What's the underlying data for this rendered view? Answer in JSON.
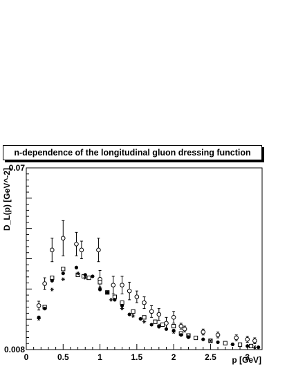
{
  "chart_data": {
    "type": "scatter",
    "title": "n-dependence of the longitudinal gluon dressing function",
    "xlabel": "p [GeV]",
    "ylabel": "D_L(p) [GeV^-2]",
    "xlim": [
      0,
      3.2
    ],
    "ylim": [
      0.008,
      0.07
    ],
    "xticks": [
      "0",
      "0.5",
      "1",
      "1.5",
      "2",
      "2.5",
      "3"
    ],
    "yticks": [
      "0.008",
      "0.07"
    ],
    "grid": false,
    "series": [
      {
        "marker": "open-circle",
        "x": [
          0.17,
          0.25,
          0.35,
          0.5,
          0.68,
          0.75,
          0.98,
          1.0,
          1.18,
          1.3,
          1.4,
          1.5,
          1.6,
          1.7,
          1.8,
          1.9,
          2.0,
          2.1,
          2.15,
          2.4,
          2.6,
          2.85,
          3.0,
          3.1
        ],
        "y": [
          0.023,
          0.0305,
          0.042,
          0.046,
          0.044,
          0.042,
          0.042,
          0.032,
          0.03,
          0.03,
          0.028,
          0.026,
          0.024,
          0.021,
          0.02,
          0.017,
          0.019,
          0.016,
          0.015,
          0.014,
          0.013,
          0.012,
          0.0115,
          0.011
        ],
        "yerr": [
          0.0015,
          0.002,
          0.004,
          0.006,
          0.004,
          0.003,
          0.004,
          0.003,
          0.003,
          0.003,
          0.003,
          0.002,
          0.002,
          0.002,
          0.002,
          0.002,
          0.002,
          0.001,
          0.001,
          0.001,
          0.001,
          0.001,
          0.001,
          0.001
        ]
      },
      {
        "marker": "open-square",
        "x": [
          0.25,
          0.35,
          0.5,
          0.7,
          0.78,
          0.85,
          1.0,
          1.1,
          1.2,
          1.3,
          1.45,
          1.6,
          1.75,
          1.85,
          2.0,
          2.1,
          2.2,
          2.3,
          2.5,
          2.7,
          2.9,
          3.05
        ],
        "y": [
          0.0225,
          0.0325,
          0.0355,
          0.0335,
          0.033,
          0.0325,
          0.031,
          0.0275,
          0.026,
          0.024,
          0.021,
          0.019,
          0.0175,
          0.0165,
          0.016,
          0.0135,
          0.0128,
          0.012,
          0.011,
          0.0102,
          0.0097,
          0.0092
        ]
      },
      {
        "marker": "filled-circle",
        "x": [
          0.17,
          0.25,
          0.35,
          0.5,
          0.68,
          0.8,
          0.9,
          1.0,
          1.1,
          1.2,
          1.3,
          1.4,
          1.55,
          1.7,
          1.8,
          1.9,
          2.0,
          2.1,
          2.2,
          2.4,
          2.6,
          2.8,
          3.0,
          3.15
        ],
        "y": [
          0.019,
          0.022,
          0.0315,
          0.034,
          0.036,
          0.0335,
          0.033,
          0.0285,
          0.0275,
          0.025,
          0.023,
          0.02,
          0.0185,
          0.0165,
          0.0158,
          0.015,
          0.0145,
          0.013,
          0.0122,
          0.0115,
          0.0105,
          0.0098,
          0.0092,
          0.0088
        ]
      },
      {
        "marker": "star",
        "x": [
          0.17,
          0.35,
          0.5,
          0.7,
          0.8,
          1.0,
          1.15,
          1.3,
          1.45,
          1.6,
          1.8,
          2.0,
          2.2,
          2.5,
          2.8,
          3.1
        ],
        "y": [
          0.0185,
          0.0285,
          0.032,
          0.034,
          0.0325,
          0.029,
          0.025,
          0.022,
          0.0195,
          0.0175,
          0.0162,
          0.014,
          0.0125,
          0.011,
          0.0098,
          0.0088
        ]
      }
    ]
  }
}
